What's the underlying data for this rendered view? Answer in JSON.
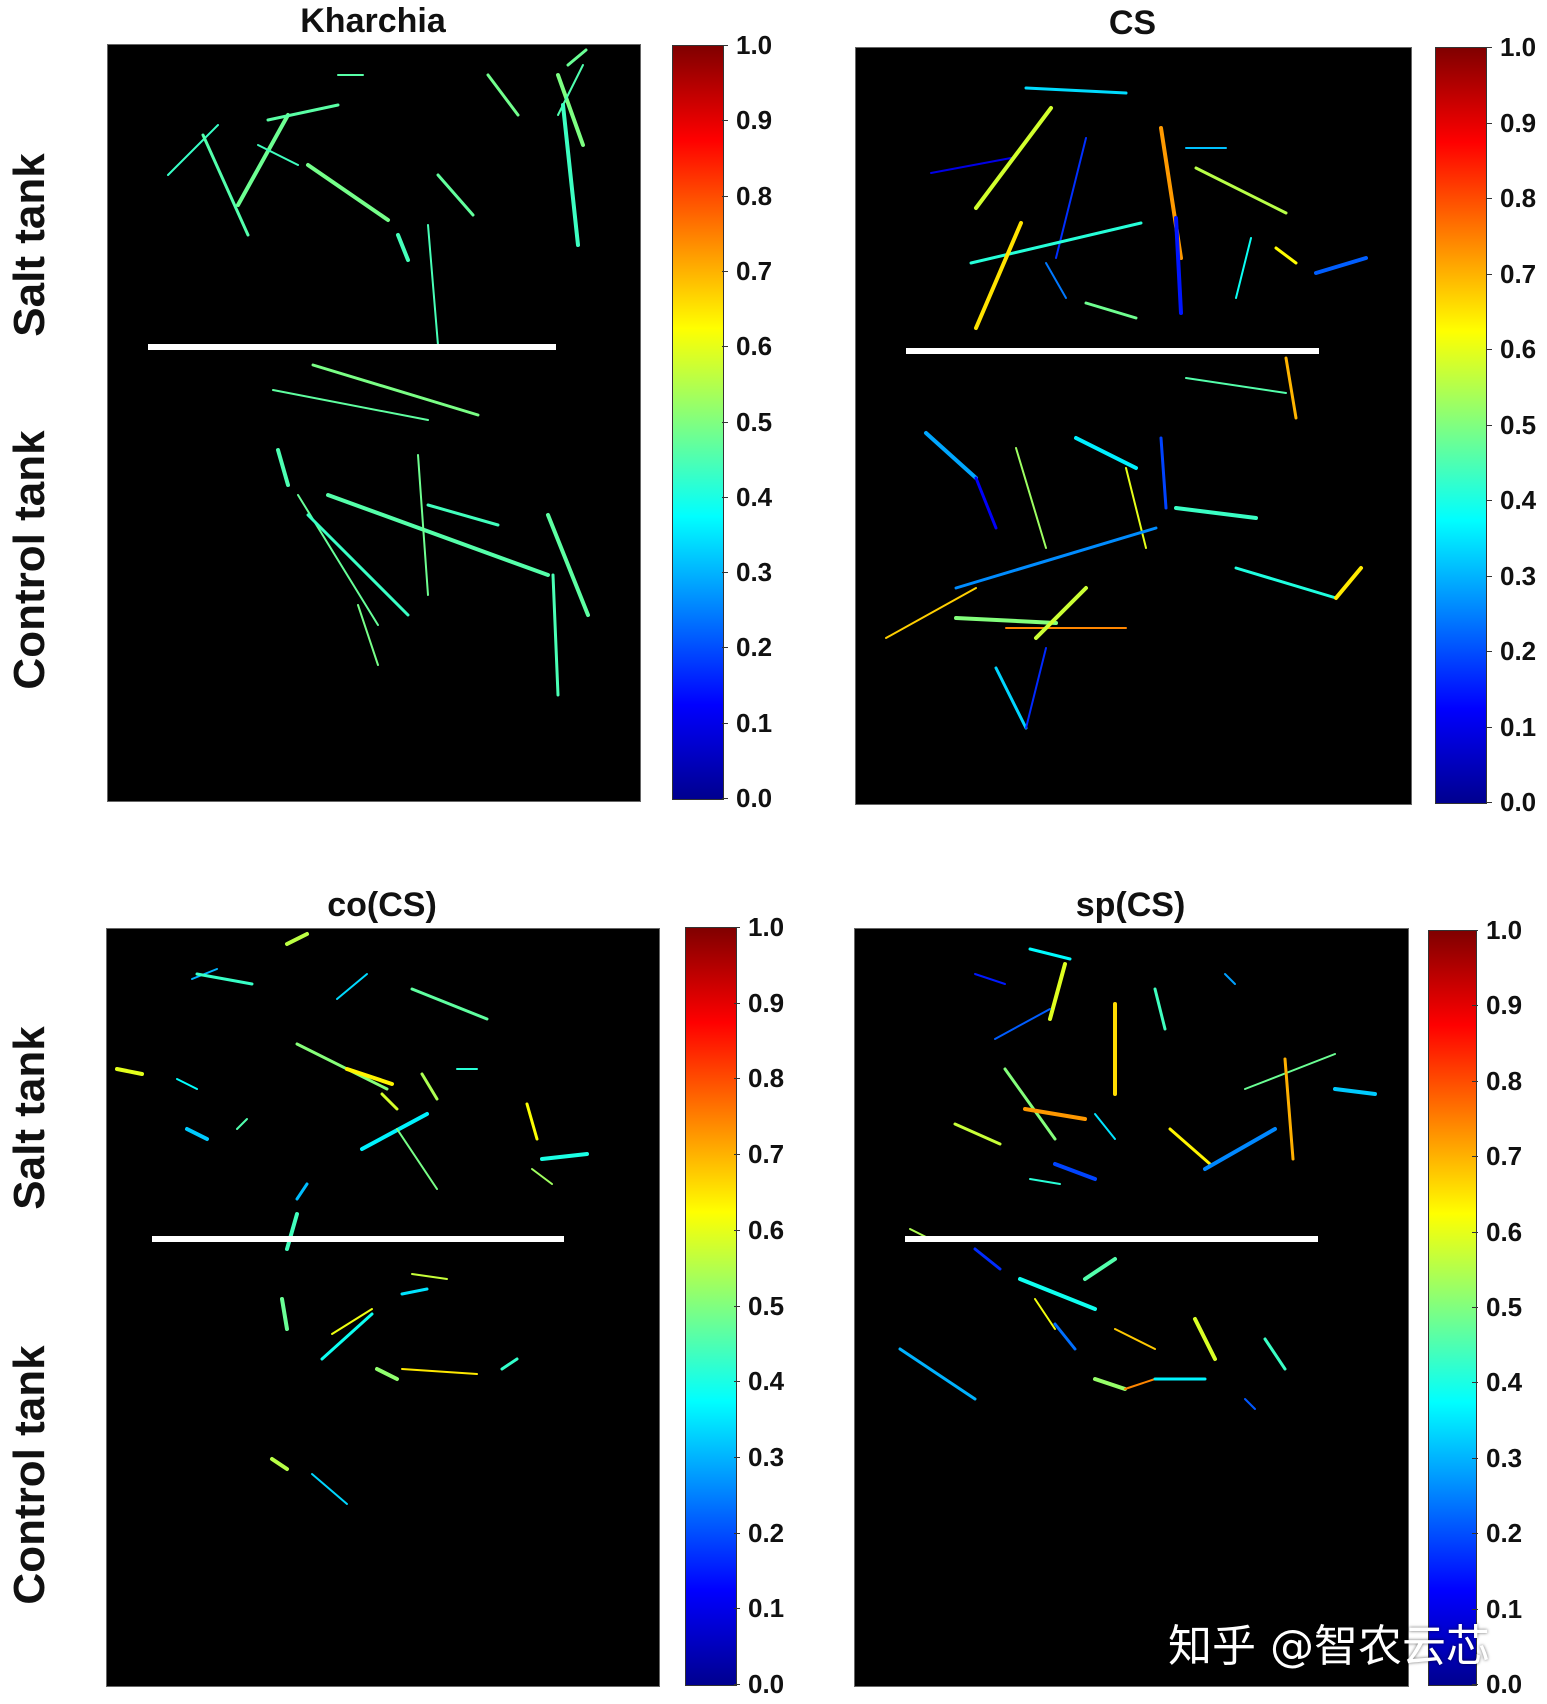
{
  "panels": [
    {
      "title": "Kharchia"
    },
    {
      "title": "CS"
    },
    {
      "title": "co(CS)"
    },
    {
      "title": "sp(CS)"
    }
  ],
  "row_labels": {
    "salt": "Salt tank",
    "control": "Control tank"
  },
  "watermark": "知乎 @智农云芯",
  "chart_data": [
    {
      "type": "heatmap",
      "title": "Kharchia",
      "colorbar": {
        "min": 0.0,
        "max": 1.0,
        "ticks": [
          "0.0",
          "0.1",
          "0.2",
          "0.3",
          "0.4",
          "0.5",
          "0.6",
          "0.7",
          "0.8",
          "0.9",
          "1.0"
        ],
        "colormap": "jet"
      },
      "rows": [
        "Salt tank",
        "Control tank"
      ],
      "dominant_value": 0.45
    },
    {
      "type": "heatmap",
      "title": "CS",
      "colorbar": {
        "min": 0.0,
        "max": 1.0,
        "ticks": [
          "0.0",
          "0.1",
          "0.2",
          "0.3",
          "0.4",
          "0.5",
          "0.6",
          "0.7",
          "0.8",
          "0.9",
          "1.0"
        ],
        "colormap": "jet"
      },
      "rows": [
        "Salt tank",
        "Control tank"
      ],
      "value_range": [
        0.1,
        0.75
      ]
    },
    {
      "type": "heatmap",
      "title": "co(CS)",
      "colorbar": {
        "min": 0.0,
        "max": 1.0,
        "ticks": [
          "0.0",
          "0.1",
          "0.2",
          "0.3",
          "0.4",
          "0.5",
          "0.6",
          "0.7",
          "0.8",
          "0.9",
          "1.0"
        ],
        "colormap": "jet"
      },
      "rows": [
        "Salt tank",
        "Control tank"
      ],
      "value_range": [
        0.3,
        0.65
      ]
    },
    {
      "type": "heatmap",
      "title": "sp(CS)",
      "colorbar": {
        "min": 0.0,
        "max": 1.0,
        "ticks": [
          "0.0",
          "0.1",
          "0.2",
          "0.3",
          "0.4",
          "0.5",
          "0.6",
          "0.7",
          "0.8",
          "0.9",
          "1.0"
        ],
        "colormap": "jet"
      },
      "rows": [
        "Salt tank",
        "Control tank"
      ],
      "value_range": [
        0.15,
        0.75
      ]
    }
  ],
  "colors": {
    "background": "#000000",
    "separator": "#ffffff",
    "page": "#ffffff"
  }
}
